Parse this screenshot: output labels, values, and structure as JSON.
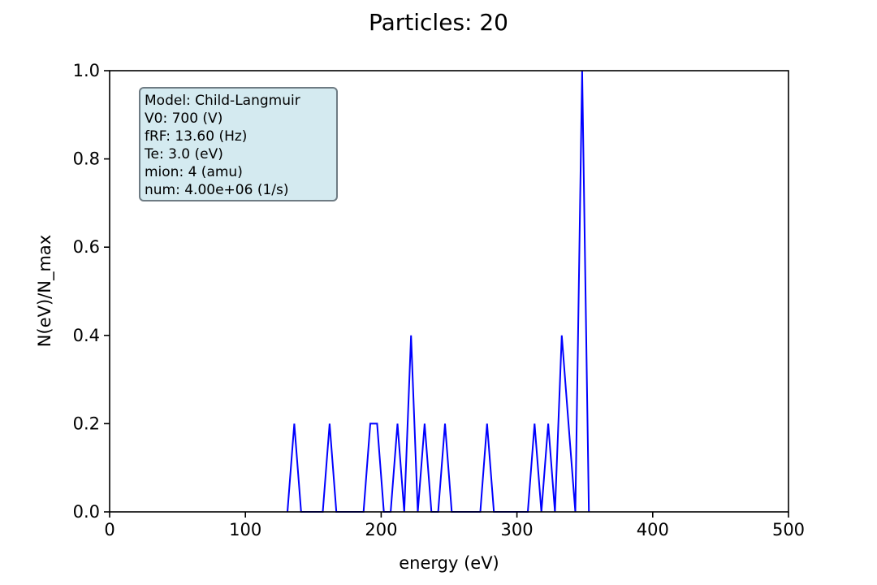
{
  "chart_data": {
    "type": "line",
    "title": "Particles: 20",
    "xlabel": "energy (eV)",
    "ylabel": "N(eV)/N_max",
    "xlim": [
      0,
      500
    ],
    "ylim": [
      0,
      1.0
    ],
    "x_ticks": [
      0,
      100,
      200,
      300,
      400,
      500
    ],
    "x_tick_labels": [
      "0",
      "100",
      "200",
      "300",
      "400",
      "500"
    ],
    "y_ticks": [
      0,
      0.2,
      0.4,
      0.6,
      0.8,
      1.0
    ],
    "y_tick_labels": [
      "0.0",
      "0.2",
      "0.4",
      "0.6",
      "0.8",
      "1.0"
    ],
    "grid": false,
    "series": [
      {
        "color": "#0000ff",
        "x": [
          131,
          136,
          141,
          157,
          162,
          167,
          187,
          192,
          197,
          202,
          207,
          212,
          217,
          222,
          227,
          232,
          237,
          242,
          247,
          252,
          273,
          278,
          283,
          308,
          313,
          318,
          323,
          328,
          333,
          338,
          343,
          348,
          353
        ],
        "y": [
          0,
          0.2,
          0,
          0,
          0.2,
          0,
          0,
          0.2,
          0.2,
          0,
          0,
          0.2,
          0,
          0.4,
          0,
          0.2,
          0,
          0,
          0.2,
          0,
          0,
          0.2,
          0,
          0,
          0.2,
          0,
          0.2,
          0,
          0.4,
          0.2,
          0,
          1.0,
          0
        ]
      }
    ],
    "annotation": {
      "position": "top-left",
      "background": "#d4eaf0",
      "border": "#6e7b83",
      "lines": [
        "Model: Child-Langmuir",
        "V0: 700 (V)",
        "fRF: 13.60 (Hz)",
        "Te: 3.0 (eV)",
        "mion: 4 (amu)",
        "num: 4.00e+06 (1/s)"
      ]
    }
  }
}
